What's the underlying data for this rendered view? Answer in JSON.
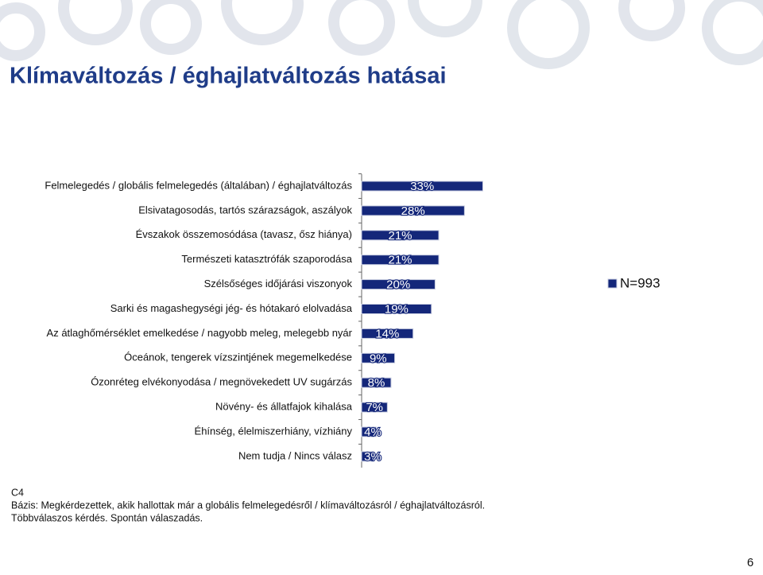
{
  "header": {
    "title": "Klímaváltozás / éghajlatváltozás hatásai"
  },
  "chart_data": {
    "type": "bar",
    "orientation": "horizontal",
    "categories": [
      "Felmelegedés / globális felmelegedés (általában) / éghajlatváltozás",
      "Elsivatagosodás, tartós szárazságok, aszályok",
      "Évszakok összemosódása (tavasz, ősz hiánya)",
      "Természeti katasztrófák szaporodása",
      "Szélsőséges időjárási viszonyok",
      "Sarki és magashegységi jég- és hótakaró elolvadása",
      "Az átlaghőmérséklet emelkedése / nagyobb meleg, melegebb nyár",
      "Óceánok, tengerek vízszintjének megemelkedése",
      "Ózonréteg elvékonyodása / megnövekedett UV sugárzás",
      "Növény- és állatfajok kihalása",
      "Éhínség, élelmiszerhiány, vízhiány",
      "Nem tudja / Nincs válasz"
    ],
    "series": [
      {
        "name": "N=993",
        "color": "#14277a",
        "values": [
          33,
          28,
          21,
          21,
          20,
          19,
          14,
          9,
          8,
          7,
          4,
          3
        ],
        "value_labels": [
          "33%",
          "28%",
          "21%",
          "21%",
          "20%",
          "19%",
          "14%",
          "9%",
          "8%",
          "7%",
          "4%",
          "3%"
        ]
      }
    ],
    "legend": "right"
  },
  "footer": {
    "lines": [
      "C4",
      "Bázis: Megkérdezettek, akik hallottak már a globális felmelegedésről / klímaváltozásról / éghajlatváltozásról.",
      "Többválaszos kérdés. Spontán válaszadás."
    ]
  },
  "page_number": "6"
}
